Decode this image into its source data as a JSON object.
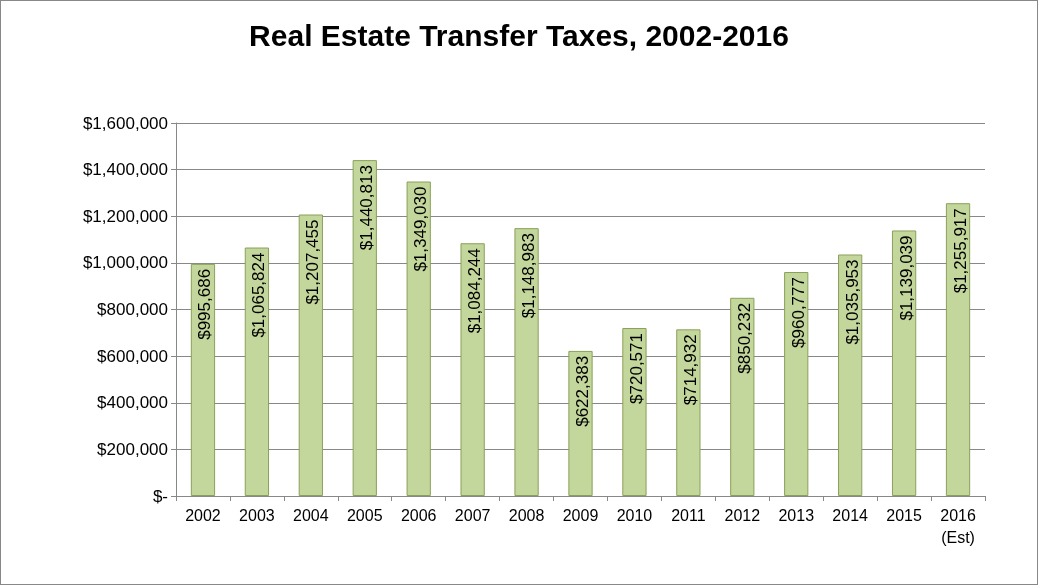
{
  "chart_data": {
    "type": "bar",
    "title": "Real Estate Transfer Taxes, 2002-2016",
    "categories": [
      "2002",
      "2003",
      "2004",
      "2005",
      "2006",
      "2007",
      "2008",
      "2009",
      "2010",
      "2011",
      "2012",
      "2013",
      "2014",
      "2015",
      "2016\n(Est)"
    ],
    "values": [
      995686,
      1065824,
      1207455,
      1440813,
      1349030,
      1084244,
      1148983,
      622383,
      720571,
      714932,
      850232,
      960777,
      1035953,
      1139039,
      1255917
    ],
    "value_labels": [
      "$995,686",
      "$1,065,824",
      "$1,207,455",
      "$1,440,813",
      "$1,349,030",
      "$1,084,244",
      "$1,148,983",
      "$622,383",
      "$720,571",
      "$714,932",
      "$850,232",
      "$960,777",
      "$1,035,953",
      "$1,139,039",
      "$1,255,917"
    ],
    "color": "#c3d69b",
    "ylim": [
      0,
      1600000
    ],
    "yticks": [
      {
        "value": 0,
        "label": "$-"
      },
      {
        "value": 200000,
        "label": "$200,000"
      },
      {
        "value": 400000,
        "label": "$400,000"
      },
      {
        "value": 600000,
        "label": "$600,000"
      },
      {
        "value": 800000,
        "label": "$800,000"
      },
      {
        "value": 1000000,
        "label": "$1,000,000"
      },
      {
        "value": 1200000,
        "label": "$1,200,000"
      },
      {
        "value": 1400000,
        "label": "$1,400,000"
      },
      {
        "value": 1600000,
        "label": "$1,600,000"
      }
    ],
    "grid": "y"
  }
}
